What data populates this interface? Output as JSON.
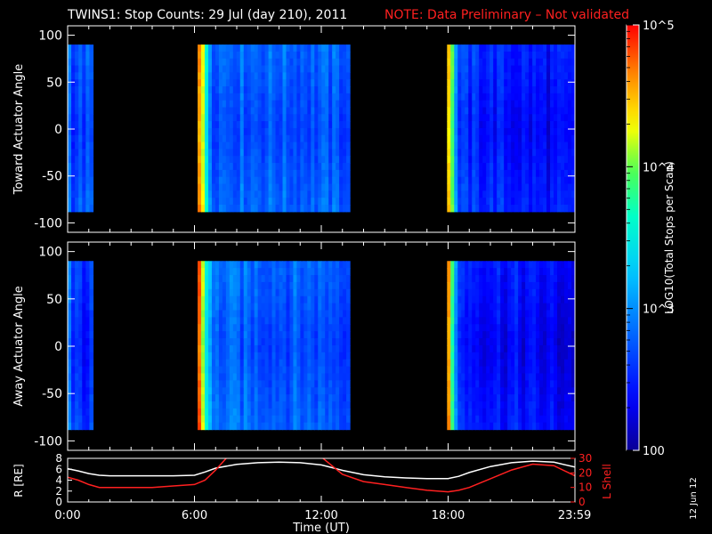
{
  "title": {
    "main": "TWINS1: Stop Counts: 29 Jul (day 210), 2011",
    "note": "NOTE: Data Preliminary – Not validated",
    "note_color": "#ff2020"
  },
  "side_date": "12 Jun 12",
  "colors": {
    "background": "#000000",
    "axes": "#ffffff",
    "red": "#ff2020"
  },
  "chart_data": [
    {
      "type": "heatmap",
      "name": "toward",
      "ylabel": "Toward Actuator Angle",
      "ylim": [
        -110,
        110
      ],
      "yticks": [
        {
          "v": 100,
          "label": "100"
        },
        {
          "v": 50,
          "label": "50"
        },
        {
          "v": 0,
          "label": "0"
        },
        {
          "v": -50,
          "label": "-50"
        },
        {
          "v": -100,
          "label": "-100"
        }
      ],
      "angle_range": [
        -88,
        90
      ],
      "data_intervals": [
        {
          "start": 0.0,
          "end": 1.2,
          "base": 2.75,
          "edge_high": 2.95
        },
        {
          "start": 6.15,
          "end": 13.35,
          "base": 2.9,
          "edge_high": 4.7
        },
        {
          "start": 17.95,
          "end": 24.0,
          "base": 2.65,
          "edge_high": 4.6
        }
      ],
      "xlim_hours": [
        0,
        24
      ]
    },
    {
      "type": "heatmap",
      "name": "away",
      "ylabel": "Away Actuator Angle",
      "ylim": [
        -110,
        110
      ],
      "yticks": [
        {
          "v": 100,
          "label": "100"
        },
        {
          "v": 50,
          "label": "50"
        },
        {
          "v": 0,
          "label": "0"
        },
        {
          "v": -50,
          "label": "-50"
        },
        {
          "v": -100,
          "label": "-100"
        }
      ],
      "angle_range": [
        -88,
        90
      ],
      "data_intervals": [
        {
          "start": 0.0,
          "end": 1.2,
          "base": 2.6,
          "edge_high": 2.95
        },
        {
          "start": 6.15,
          "end": 13.35,
          "base": 2.9,
          "edge_high": 4.8
        },
        {
          "start": 17.95,
          "end": 24.0,
          "base": 2.6,
          "edge_high": 4.6
        }
      ],
      "xlim_hours": [
        0,
        24
      ]
    },
    {
      "type": "line",
      "name": "orbit",
      "left_label": "R [RE]",
      "right_label": "L Shell",
      "left_ylim": [
        0,
        8
      ],
      "left_yticks": [
        {
          "v": 0,
          "label": "0"
        },
        {
          "v": 2,
          "label": "2"
        },
        {
          "v": 4,
          "label": "4"
        },
        {
          "v": 6,
          "label": "6"
        },
        {
          "v": 8,
          "label": "8"
        }
      ],
      "right_ylim": [
        0,
        30
      ],
      "right_yticks": [
        {
          "v": 0,
          "label": "0"
        },
        {
          "v": 10,
          "label": "10"
        },
        {
          "v": 20,
          "label": "20"
        },
        {
          "v": 30,
          "label": "30"
        }
      ],
      "series": [
        {
          "axis": "left",
          "color": "#ffffff",
          "x": [
            0,
            0.5,
            1,
            1.5,
            2,
            3,
            4,
            5,
            6,
            6.5,
            7,
            8,
            9,
            10,
            11,
            12,
            12.5,
            13,
            14,
            15,
            16,
            17,
            18,
            18.5,
            19,
            20,
            21,
            22,
            23,
            24
          ],
          "y": [
            6.1,
            5.7,
            5.2,
            4.9,
            4.8,
            4.8,
            4.8,
            4.8,
            4.9,
            5.5,
            6.2,
            6.9,
            7.2,
            7.3,
            7.2,
            6.8,
            6.3,
            5.8,
            5.0,
            4.6,
            4.4,
            4.3,
            4.3,
            4.7,
            5.4,
            6.5,
            7.2,
            7.5,
            7.3,
            6.4
          ]
        },
        {
          "axis": "right",
          "color": "#ff2020",
          "x": [
            0,
            0.5,
            1,
            1.5,
            2,
            3,
            4,
            5,
            6,
            6.5,
            7,
            7.5,
            8,
            11.5,
            12,
            12.5,
            13,
            14,
            15,
            16,
            17,
            18,
            18.5,
            19,
            20,
            21,
            22,
            23,
            24
          ],
          "y": [
            17,
            15,
            12,
            10,
            10,
            10,
            10,
            11,
            12,
            15,
            22,
            30,
            34,
            34,
            31,
            25,
            19,
            14,
            12,
            10,
            8,
            7,
            8,
            10,
            16,
            22,
            26,
            25,
            18
          ]
        }
      ],
      "xlim_hours": [
        0,
        24
      ],
      "xticks": [
        {
          "v": 0,
          "label": "0:00"
        },
        {
          "v": 6,
          "label": "6:00"
        },
        {
          "v": 12,
          "label": "12:00"
        },
        {
          "v": 18,
          "label": "18:00"
        },
        {
          "v": 23.983,
          "label": "23:59"
        }
      ],
      "xlabel": "Time (UT)"
    },
    {
      "type": "colorbar",
      "label": "LOG10(Total Stops per Scan)",
      "vlim_log": [
        2,
        5
      ],
      "ticks": [
        {
          "v": 5,
          "label": "10^5"
        },
        {
          "v": 4,
          "label": "10^4"
        },
        {
          "v": 3,
          "label": "10^3"
        },
        {
          "v": 2,
          "label": "100"
        }
      ]
    }
  ]
}
